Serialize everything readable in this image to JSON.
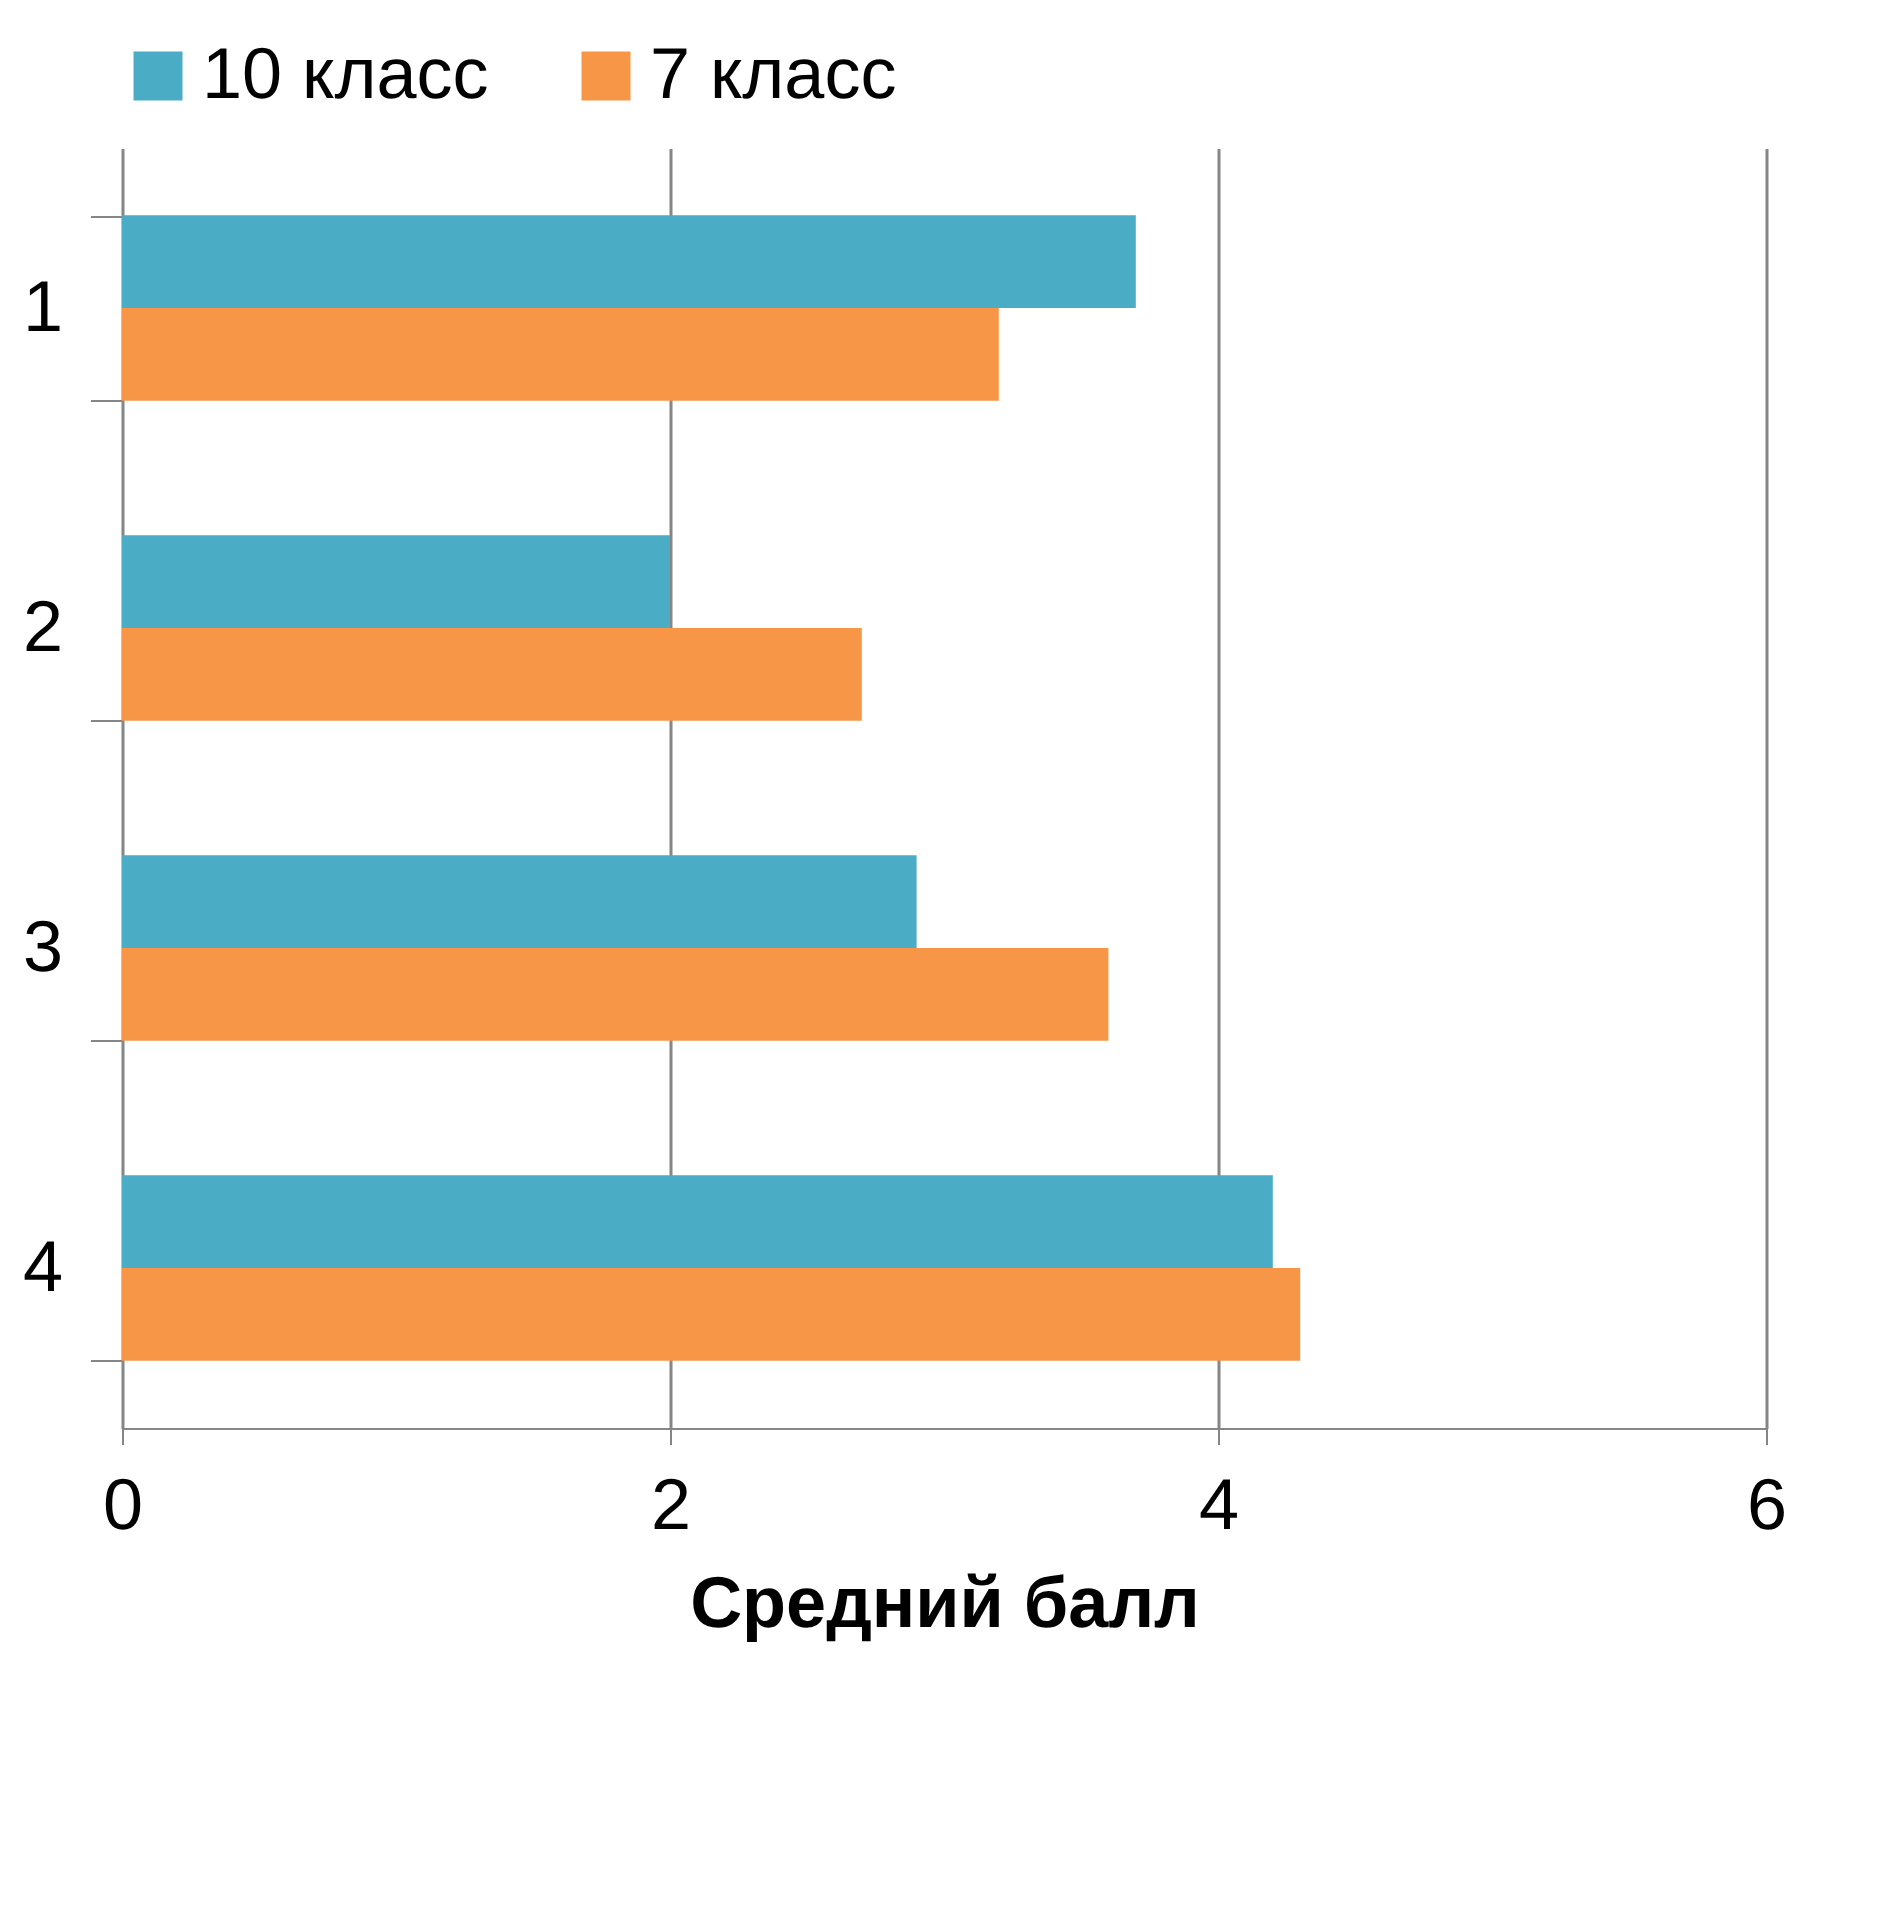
{
  "chart_data": {
    "type": "bar",
    "orientation": "horizontal",
    "xlabel": "Средний балл",
    "categories": [
      "1",
      "2",
      "3",
      "4"
    ],
    "series": [
      {
        "name": "10 класс",
        "color": "#4bacc6",
        "values": [
          3.7,
          2.0,
          2.9,
          4.2
        ]
      },
      {
        "name": "7 класс",
        "color": "#f79646",
        "values": [
          3.2,
          2.7,
          3.6,
          4.3
        ]
      }
    ],
    "xlim": [
      0,
      6
    ],
    "xticks": [
      0,
      2,
      4,
      6
    ],
    "grid": "x",
    "legend": "top"
  }
}
